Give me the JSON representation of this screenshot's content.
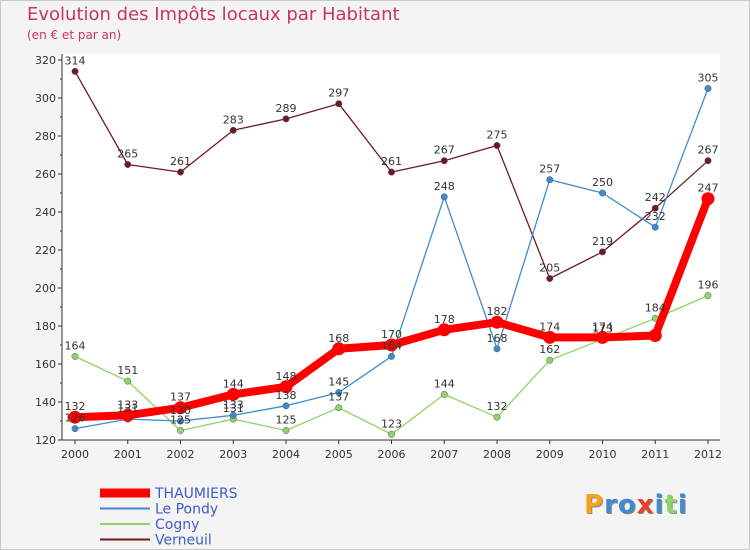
{
  "chart_data": {
    "type": "line",
    "title": "Evolution des Impôts locaux par Habitant",
    "subtitle": "(en € et par an)",
    "x": [
      2000,
      2001,
      2002,
      2003,
      2004,
      2005,
      2006,
      2007,
      2008,
      2009,
      2010,
      2011,
      2012
    ],
    "ylim": [
      120,
      320
    ],
    "yticks": [
      120,
      140,
      160,
      180,
      200,
      220,
      240,
      260,
      280,
      300,
      320
    ],
    "grid": false,
    "legend_position": "bottom-left",
    "series": [
      {
        "name": "THAUMIERS",
        "color": "#ff0000",
        "values": [
          132,
          133,
          137,
          144,
          148,
          168,
          170,
          178,
          182,
          174,
          174,
          175,
          247
        ],
        "labels": [
          "132",
          "133",
          "137",
          "144",
          "148",
          "168",
          "170",
          "178",
          "182",
          "174",
          "174",
          "",
          "247"
        ]
      },
      {
        "name": "Le Pondy",
        "color": "#3d8ccf",
        "values": [
          126,
          131,
          130,
          133,
          138,
          145,
          164,
          248,
          168,
          257,
          250,
          232,
          305
        ],
        "labels": [
          "126",
          "131",
          "130",
          "133",
          "138",
          "145",
          "164",
          "248",
          "168",
          "257",
          "250",
          "232",
          "305"
        ]
      },
      {
        "name": "Cogny",
        "color": "#8fd46a",
        "values": [
          164,
          151,
          125,
          131,
          125,
          137,
          123,
          144,
          132,
          162,
          173,
          184,
          196
        ],
        "labels": [
          "164",
          "151",
          "125",
          "131",
          "125",
          "137",
          "123",
          "144",
          "132",
          "162",
          "173",
          "184",
          "196"
        ]
      },
      {
        "name": "Verneuil",
        "color": "#6e1a22",
        "values": [
          314,
          265,
          261,
          283,
          289,
          297,
          261,
          267,
          275,
          205,
          219,
          242,
          267
        ],
        "labels": [
          "314",
          "265",
          "261",
          "283",
          "289",
          "297",
          "261",
          "267",
          "275",
          "205",
          "219",
          "242",
          "267"
        ]
      }
    ]
  },
  "logo": {
    "letters": [
      {
        "ch": "P",
        "color": "#f7a21b"
      },
      {
        "ch": "r",
        "color": "#3d8ccf"
      },
      {
        "ch": "o",
        "color": "#3d8ccf"
      },
      {
        "ch": "x",
        "color": "#e8422b"
      },
      {
        "ch": "i",
        "color": "#3d8ccf"
      },
      {
        "ch": "t",
        "color": "#8fd46a"
      },
      {
        "ch": "i",
        "color": "#3d8ccf"
      }
    ]
  }
}
